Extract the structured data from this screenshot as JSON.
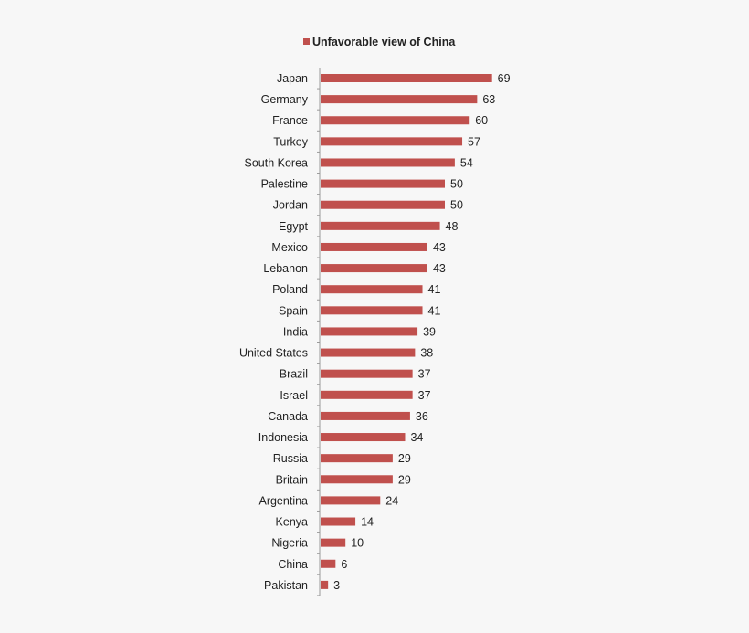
{
  "chart_data": {
    "type": "bar",
    "orientation": "horizontal",
    "legend": {
      "position": "top",
      "entries": [
        "Unfavorable view of China"
      ]
    },
    "categories": [
      "Japan",
      "Germany",
      "France",
      "Turkey",
      "South Korea",
      "Palestine",
      "Jordan",
      "Egypt",
      "Mexico",
      "Lebanon",
      "Poland",
      "Spain",
      "India",
      "United States",
      "Brazil",
      "Israel",
      "Canada",
      "Indonesia",
      "Russia",
      "Britain",
      "Argentina",
      "Kenya",
      "Nigeria",
      "China",
      "Pakistan"
    ],
    "series": [
      {
        "name": "Unfavorable view of China",
        "color": "#c0504d",
        "values": [
          69,
          63,
          60,
          57,
          54,
          50,
          50,
          48,
          43,
          43,
          41,
          41,
          39,
          38,
          37,
          37,
          36,
          34,
          29,
          29,
          24,
          14,
          10,
          6,
          3
        ]
      }
    ],
    "data_labels": true,
    "grid": false,
    "xlim": [
      0,
      80
    ]
  }
}
